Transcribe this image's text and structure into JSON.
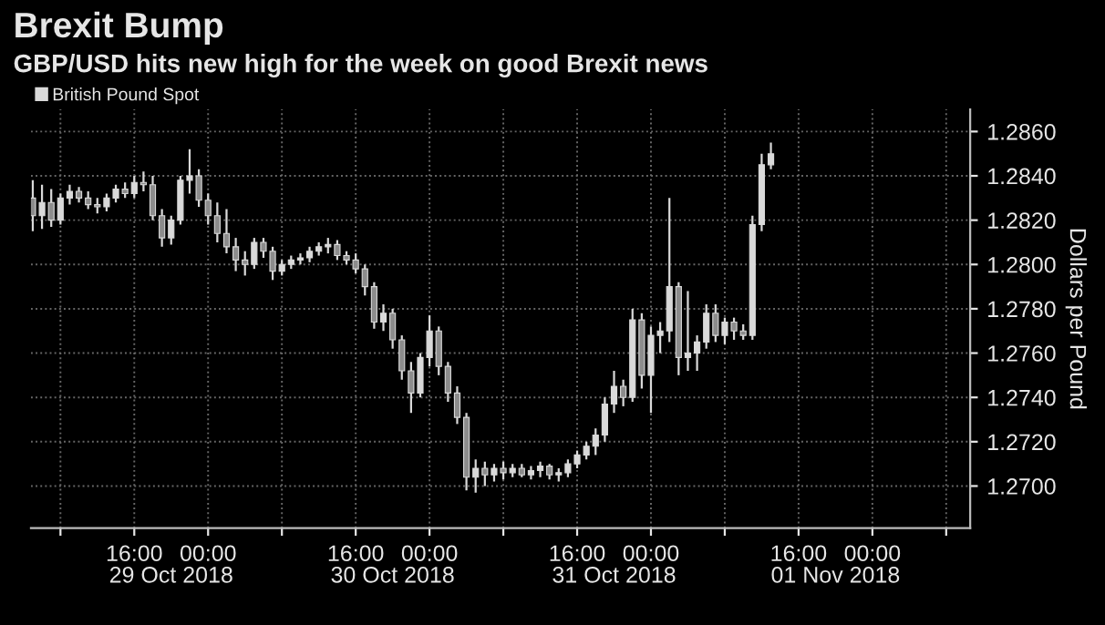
{
  "chart_data": {
    "type": "candlestick",
    "title": "Brexit Bump",
    "subtitle": "GBP/USD hits new high for the week on good Brexit news",
    "ylabel": "Dollars per Pound",
    "x": [
      "2018-10-29T05:00",
      "2018-10-29T06:00",
      "2018-10-29T07:00",
      "2018-10-29T08:00",
      "2018-10-29T09:00",
      "2018-10-29T10:00",
      "2018-10-29T11:00",
      "2018-10-29T12:00",
      "2018-10-29T13:00",
      "2018-10-29T14:00",
      "2018-10-29T15:00",
      "2018-10-29T16:00",
      "2018-10-29T17:00",
      "2018-10-29T18:00",
      "2018-10-29T19:00",
      "2018-10-29T20:00",
      "2018-10-29T21:00",
      "2018-10-29T22:00",
      "2018-10-29T23:00",
      "2018-10-30T00:00",
      "2018-10-30T01:00",
      "2018-10-30T02:00",
      "2018-10-30T03:00",
      "2018-10-30T04:00",
      "2018-10-30T05:00",
      "2018-10-30T06:00",
      "2018-10-30T07:00",
      "2018-10-30T08:00",
      "2018-10-30T09:00",
      "2018-10-30T10:00",
      "2018-10-30T11:00",
      "2018-10-30T12:00",
      "2018-10-30T13:00",
      "2018-10-30T14:00",
      "2018-10-30T15:00",
      "2018-10-30T16:00",
      "2018-10-30T17:00",
      "2018-10-30T18:00",
      "2018-10-30T19:00",
      "2018-10-30T20:00",
      "2018-10-30T21:00",
      "2018-10-30T22:00",
      "2018-10-30T23:00",
      "2018-10-31T00:00",
      "2018-10-31T01:00",
      "2018-10-31T02:00",
      "2018-10-31T03:00",
      "2018-10-31T04:00",
      "2018-10-31T05:00",
      "2018-10-31T06:00",
      "2018-10-31T07:00",
      "2018-10-31T08:00",
      "2018-10-31T09:00",
      "2018-10-31T10:00",
      "2018-10-31T11:00",
      "2018-10-31T12:00",
      "2018-10-31T13:00",
      "2018-10-31T14:00",
      "2018-10-31T15:00",
      "2018-10-31T16:00",
      "2018-10-31T17:00",
      "2018-10-31T18:00",
      "2018-10-31T19:00",
      "2018-10-31T20:00",
      "2018-10-31T21:00",
      "2018-10-31T22:00",
      "2018-10-31T23:00",
      "2018-11-01T00:00",
      "2018-11-01T01:00",
      "2018-11-01T02:00",
      "2018-11-01T03:00",
      "2018-11-01T04:00",
      "2018-11-01T05:00",
      "2018-11-01T06:00",
      "2018-11-01T07:00",
      "2018-11-01T08:00",
      "2018-11-01T09:00",
      "2018-11-01T10:00",
      "2018-11-01T11:00",
      "2018-11-01T12:00",
      "2018-11-01T13:00"
    ],
    "series": [
      {
        "name": "British Pound Spot",
        "color": "#d9d9d9",
        "ohlc": [
          [
            1.283,
            1.2838,
            1.2815,
            1.2822
          ],
          [
            1.2822,
            1.2836,
            1.2816,
            1.2828
          ],
          [
            1.2828,
            1.2834,
            1.2817,
            1.282
          ],
          [
            1.282,
            1.2832,
            1.2818,
            1.283
          ],
          [
            1.283,
            1.2836,
            1.2827,
            1.2833
          ],
          [
            1.2833,
            1.2835,
            1.2828,
            1.283
          ],
          [
            1.283,
            1.2833,
            1.2825,
            1.2827
          ],
          [
            1.2827,
            1.283,
            1.2823,
            1.2826
          ],
          [
            1.2826,
            1.2832,
            1.2824,
            1.283
          ],
          [
            1.283,
            1.2836,
            1.2828,
            1.2834
          ],
          [
            1.2834,
            1.2837,
            1.283,
            1.2832
          ],
          [
            1.2832,
            1.284,
            1.283,
            1.2837
          ],
          [
            1.2837,
            1.2842,
            1.2833,
            1.2836
          ],
          [
            1.2836,
            1.284,
            1.282,
            1.2822
          ],
          [
            1.2822,
            1.2825,
            1.2808,
            1.2812
          ],
          [
            1.2812,
            1.2822,
            1.2809,
            1.282
          ],
          [
            1.282,
            1.284,
            1.2818,
            1.2838
          ],
          [
            1.2838,
            1.2852,
            1.2832,
            1.284
          ],
          [
            1.284,
            1.2843,
            1.2826,
            1.2829
          ],
          [
            1.2829,
            1.2832,
            1.2818,
            1.2822
          ],
          [
            1.2822,
            1.2828,
            1.281,
            1.2814
          ],
          [
            1.2814,
            1.2825,
            1.2805,
            1.2808
          ],
          [
            1.2808,
            1.2812,
            1.2797,
            1.2802
          ],
          [
            1.2802,
            1.2806,
            1.2795,
            1.28
          ],
          [
            1.28,
            1.2812,
            1.2798,
            1.281
          ],
          [
            1.281,
            1.2812,
            1.2803,
            1.2806
          ],
          [
            1.2806,
            1.2808,
            1.2793,
            1.2797
          ],
          [
            1.2797,
            1.2802,
            1.2795,
            1.28
          ],
          [
            1.28,
            1.2804,
            1.2798,
            1.2802
          ],
          [
            1.2802,
            1.2805,
            1.28,
            1.2803
          ],
          [
            1.2803,
            1.2808,
            1.2801,
            1.2806
          ],
          [
            1.2806,
            1.281,
            1.2804,
            1.2808
          ],
          [
            1.2808,
            1.2812,
            1.2805,
            1.2809
          ],
          [
            1.2809,
            1.2811,
            1.2802,
            1.2804
          ],
          [
            1.2804,
            1.2806,
            1.28,
            1.2802
          ],
          [
            1.2802,
            1.2805,
            1.2796,
            1.2798
          ],
          [
            1.2798,
            1.28,
            1.2786,
            1.279
          ],
          [
            1.279,
            1.2792,
            1.2771,
            1.2774
          ],
          [
            1.2774,
            1.2782,
            1.277,
            1.2778
          ],
          [
            1.2778,
            1.278,
            1.2762,
            1.2766
          ],
          [
            1.2766,
            1.2768,
            1.2748,
            1.2752
          ],
          [
            1.2752,
            1.2756,
            1.2733,
            1.2742
          ],
          [
            1.2742,
            1.276,
            1.274,
            1.2758
          ],
          [
            1.2758,
            1.2777,
            1.2754,
            1.277
          ],
          [
            1.277,
            1.2772,
            1.275,
            1.2754
          ],
          [
            1.2754,
            1.2756,
            1.2738,
            1.2742
          ],
          [
            1.2742,
            1.2745,
            1.2728,
            1.2731
          ],
          [
            1.2731,
            1.2733,
            1.2698,
            1.2704
          ],
          [
            1.2704,
            1.2712,
            1.2697,
            1.2708
          ],
          [
            1.2708,
            1.2711,
            1.27,
            1.2705
          ],
          [
            1.2705,
            1.271,
            1.2702,
            1.2708
          ],
          [
            1.2708,
            1.2711,
            1.2703,
            1.2706
          ],
          [
            1.2706,
            1.271,
            1.2704,
            1.2708
          ],
          [
            1.2708,
            1.271,
            1.2704,
            1.2705
          ],
          [
            1.2705,
            1.2709,
            1.2703,
            1.2707
          ],
          [
            1.2707,
            1.2711,
            1.2704,
            1.2709
          ],
          [
            1.2709,
            1.271,
            1.2703,
            1.2705
          ],
          [
            1.2705,
            1.2708,
            1.2702,
            1.2706
          ],
          [
            1.2706,
            1.2712,
            1.2704,
            1.271
          ],
          [
            1.271,
            1.2716,
            1.2708,
            1.2714
          ],
          [
            1.2714,
            1.272,
            1.2712,
            1.2718
          ],
          [
            1.2718,
            1.2726,
            1.2714,
            1.2723
          ],
          [
            1.2723,
            1.274,
            1.272,
            1.2737
          ],
          [
            1.2737,
            1.2752,
            1.2733,
            1.2745
          ],
          [
            1.2745,
            1.2748,
            1.2736,
            1.274
          ],
          [
            1.274,
            1.278,
            1.2738,
            1.2775
          ],
          [
            1.2775,
            1.2778,
            1.2744,
            1.275
          ],
          [
            1.275,
            1.2772,
            1.2733,
            1.2768
          ],
          [
            1.2768,
            1.2774,
            1.276,
            1.277
          ],
          [
            1.277,
            1.283,
            1.2765,
            1.279
          ],
          [
            1.279,
            1.2792,
            1.275,
            1.2758
          ],
          [
            1.2758,
            1.2788,
            1.2752,
            1.276
          ],
          [
            1.276,
            1.2768,
            1.2752,
            1.2765
          ],
          [
            1.2765,
            1.2782,
            1.2762,
            1.2778
          ],
          [
            1.2778,
            1.2782,
            1.2765,
            1.2768
          ],
          [
            1.2768,
            1.2776,
            1.2764,
            1.2774
          ],
          [
            1.2774,
            1.2776,
            1.2766,
            1.277
          ],
          [
            1.277,
            1.2773,
            1.2766,
            1.2768
          ],
          [
            1.2768,
            1.2822,
            1.2766,
            1.2818
          ],
          [
            1.2818,
            1.285,
            1.2815,
            1.2845
          ],
          [
            1.2845,
            1.2855,
            1.2843,
            1.285
          ]
        ]
      }
    ],
    "xlim": [
      "2018-10-29T04:48",
      "2018-11-02T10:36"
    ],
    "ylim": [
      1.2681,
      1.287
    ],
    "xticks": [
      {
        "value": "2018-10-29T08:00",
        "label": null
      },
      {
        "value": "2018-10-29T16:00",
        "label": "16:00"
      },
      {
        "value": "2018-10-30T00:00",
        "label": "00:00"
      },
      {
        "value": "2018-10-30T08:00",
        "label": null
      },
      {
        "value": "2018-10-30T16:00",
        "label": "16:00"
      },
      {
        "value": "2018-10-31T00:00",
        "label": "00:00"
      },
      {
        "value": "2018-10-31T08:00",
        "label": null
      },
      {
        "value": "2018-10-31T16:00",
        "label": "16:00"
      },
      {
        "value": "2018-11-01T00:00",
        "label": "00:00"
      },
      {
        "value": "2018-11-01T08:00",
        "label": null
      },
      {
        "value": "2018-11-01T16:00",
        "label": "16:00"
      },
      {
        "value": "2018-11-02T00:00",
        "label": "00:00"
      },
      {
        "value": "2018-11-02T08:00",
        "label": null
      }
    ],
    "x2lim": [
      "2018-10-29T04:48",
      "2018-11-02T10:36"
    ],
    "x2ticks": [
      {
        "value": "2018-10-29T20:00",
        "label": "29 Oct 2018"
      },
      {
        "value": "2018-10-30T20:00",
        "label": "30 Oct 2018"
      },
      {
        "value": "2018-10-31T20:00",
        "label": "31 Oct 2018"
      },
      {
        "value": "2018-11-01T20:00",
        "label": "01 Nov 2018"
      }
    ],
    "yticks": [
      {
        "value": 1.27,
        "label": "1.2700"
      },
      {
        "value": 1.272,
        "label": "1.2720"
      },
      {
        "value": 1.274,
        "label": "1.2740"
      },
      {
        "value": 1.276,
        "label": "1.2760"
      },
      {
        "value": 1.278,
        "label": "1.2780"
      },
      {
        "value": 1.28,
        "label": "1.2800"
      },
      {
        "value": 1.282,
        "label": "1.2820"
      },
      {
        "value": 1.284,
        "label": "1.2840"
      },
      {
        "value": 1.286,
        "label": "1.2860"
      }
    ],
    "grid": true,
    "legend": "top left"
  }
}
